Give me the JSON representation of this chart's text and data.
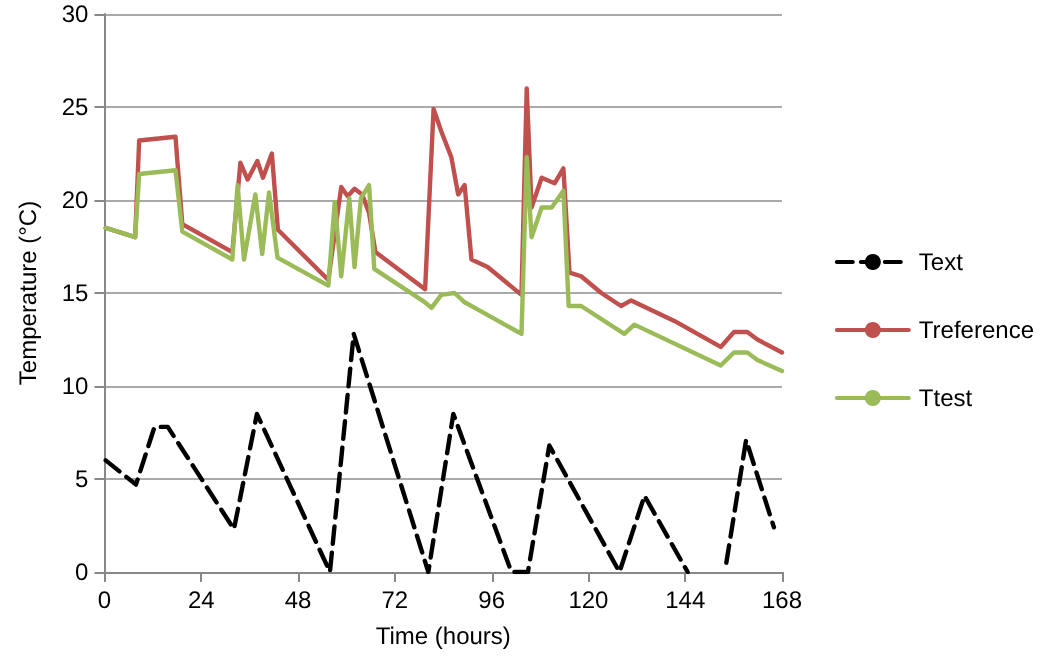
{
  "chart_data": {
    "type": "line",
    "xlabel": "Time (hours)",
    "ylabel": "Temperature (°C)",
    "xlim": [
      0,
      168
    ],
    "xticks": [
      0,
      24,
      48,
      72,
      96,
      120,
      144,
      168
    ],
    "ylim": [
      0,
      30
    ],
    "yticks": [
      0,
      5,
      10,
      15,
      20,
      25,
      30
    ],
    "grid": "y",
    "legend": "right",
    "marker": "none",
    "series": [
      {
        "name": "Text",
        "color": "#000000",
        "line_style": "dashed",
        "x": [
          0.3,
          7.8,
          12.4,
          15.7,
          32.1,
          37.8,
          55.9,
          61.8,
          80.3,
          86.5,
          100.9,
          105,
          110.3,
          127.7,
          133.9,
          144.6,
          149,
          154.2,
          159.1,
          166
        ],
        "values": [
          6.0,
          4.7,
          7.8,
          7.8,
          2.3,
          8.5,
          0,
          12.8,
          0,
          8.5,
          0,
          0,
          6.8,
          0,
          4.1,
          0,
          null,
          0.5,
          7.1,
          2.4
        ]
      },
      {
        "name": "Treference",
        "color": "#c0504d",
        "line_style": "solid",
        "x": [
          0.3,
          7.6,
          8.6,
          17.6,
          19.3,
          31.7,
          33.7,
          35.5,
          37.9,
          39.3,
          41.5,
          43,
          55.5,
          58.7,
          60.3,
          62,
          63.9,
          65.6,
          67.2,
          79.5,
          81.6,
          83.5,
          86,
          87.7,
          89.3,
          91,
          95,
          103.4,
          104.7,
          105.9,
          108.4,
          111.6,
          113.8,
          115.3,
          118.2,
          123.2,
          128.1,
          130.6,
          141.3,
          152.8,
          156.1,
          159.4,
          161.9,
          168
        ],
        "values": [
          18.5,
          18.0,
          23.2,
          23.4,
          18.7,
          17.2,
          22.0,
          21.1,
          22.1,
          21.2,
          22.5,
          18.4,
          15.7,
          20.7,
          20.2,
          20.6,
          20.3,
          19.3,
          17.2,
          15.2,
          24.9,
          23.7,
          22.3,
          20.3,
          20.8,
          16.8,
          16.4,
          14.9,
          26.0,
          19.6,
          21.2,
          20.9,
          21.7,
          16.1,
          15.9,
          15.0,
          14.3,
          14.6,
          13.5,
          12.1,
          12.9,
          12.9,
          12.5,
          11.8
        ]
      },
      {
        "name": "Ttest",
        "color": "#9bbb59",
        "line_style": "solid",
        "x": [
          0.3,
          7.6,
          8.6,
          17.6,
          19.3,
          31.7,
          33,
          34.6,
          37.4,
          39.1,
          40.8,
          42.9,
          55.5,
          57.1,
          58.7,
          60.7,
          62,
          63.6,
          65.6,
          66.9,
          79.5,
          81.1,
          83.5,
          86.8,
          89.3,
          93.5,
          103.4,
          104.7,
          105.9,
          108.4,
          110.9,
          113.8,
          115.1,
          118.2,
          128.9,
          131.4,
          152.8,
          156.1,
          159.4,
          161.9,
          168
        ],
        "values": [
          18.5,
          18.0,
          21.4,
          21.6,
          18.3,
          16.8,
          20.8,
          16.8,
          20.3,
          17.1,
          20.4,
          16.9,
          15.4,
          19.9,
          15.9,
          20.1,
          16.4,
          20.1,
          20.8,
          16.3,
          14.5,
          14.2,
          14.9,
          15.0,
          14.5,
          14.0,
          12.8,
          22.3,
          18.0,
          19.6,
          19.6,
          20.5,
          14.3,
          14.3,
          12.8,
          13.3,
          11.1,
          11.8,
          11.8,
          11.4,
          10.8
        ]
      }
    ]
  }
}
